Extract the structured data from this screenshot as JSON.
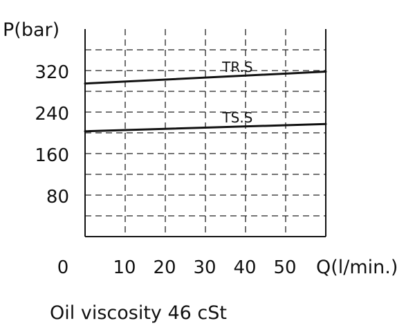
{
  "chart_data": {
    "type": "line",
    "ylabel": "P(bar)",
    "xlabel": "Q(l/min.)",
    "x_ticks": [
      "0",
      "10",
      "20",
      "30",
      "40",
      "50"
    ],
    "y_ticks": [
      "80",
      "160",
      "240",
      "320"
    ],
    "xlim": [
      0,
      60
    ],
    "ylim": [
      0,
      400
    ],
    "grid": true,
    "series": [
      {
        "name": "TR.S",
        "x": [
          0,
          60
        ],
        "y": [
          295,
          318
        ],
        "color": "#111111"
      },
      {
        "name": "TS.S",
        "x": [
          0,
          60
        ],
        "y": [
          203,
          217
        ],
        "color": "#111111"
      }
    ],
    "note": "Oil viscosity 46 cSt"
  }
}
